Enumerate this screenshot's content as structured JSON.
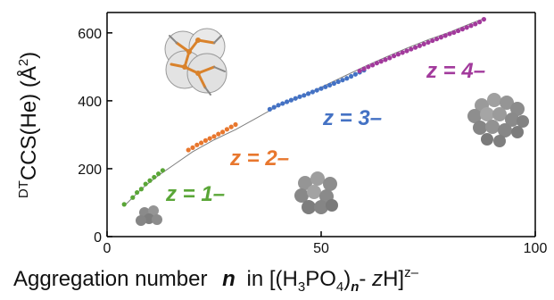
{
  "chart_data": {
    "type": "scatter",
    "title": "",
    "xlabel": {
      "part_main": "Aggregation number",
      "part_n": "n",
      "part_in": "in [(H",
      "sub_3": "3",
      "part_po": "PO",
      "sub_4": "4",
      "part_close": ")",
      "sub_n": "n",
      "part_dash": "- ",
      "part_z": "z",
      "part_h": "H]",
      "sup_charge": "z–"
    },
    "ylabel": {
      "sup": "DT",
      "main": "CCS(He) (Å",
      "sup2": "2",
      "close": ")"
    },
    "xlim": [
      0,
      100
    ],
    "ylim": [
      0,
      660
    ],
    "xticks": [
      0,
      50,
      100
    ],
    "yticks": [
      0,
      200,
      400,
      600
    ],
    "grid": false,
    "fit_line": {
      "color": "#7f7f7f",
      "x": [
        4,
        8,
        12,
        16,
        20,
        25,
        30,
        35,
        40,
        45,
        50,
        55,
        60,
        65,
        70,
        75,
        80,
        85,
        88
      ],
      "y": [
        90,
        140,
        180,
        215,
        250,
        285,
        315,
        350,
        385,
        410,
        440,
        470,
        500,
        528,
        555,
        580,
        602,
        628,
        642
      ]
    },
    "series": [
      {
        "name": "z = 1–",
        "color": "#5aa637",
        "x": [
          4,
          6,
          7,
          8,
          9,
          10,
          11,
          12,
          13
        ],
        "y": [
          95,
          115,
          130,
          140,
          155,
          165,
          175,
          185,
          195
        ]
      },
      {
        "name": "z = 2–",
        "color": "#e8772e",
        "x": [
          19,
          20,
          21,
          22,
          23,
          24,
          25,
          26,
          27,
          28,
          29,
          30
        ],
        "y": [
          255,
          262,
          270,
          276,
          283,
          289,
          295,
          302,
          308,
          316,
          323,
          330
        ]
      },
      {
        "name": "z = 3–",
        "color": "#4472c4",
        "x": [
          38,
          39,
          40,
          41,
          42,
          43,
          44,
          45,
          46,
          47,
          48,
          49,
          50,
          51,
          52,
          53,
          54,
          55,
          56,
          57,
          58,
          59,
          60
        ],
        "y": [
          375,
          381,
          387,
          392,
          397,
          402,
          407,
          412,
          416,
          421,
          426,
          431,
          436,
          441,
          446,
          451,
          456,
          461,
          466,
          472,
          478,
          484,
          490
        ]
      },
      {
        "name": "z = 4–",
        "color": "#a23a9c",
        "x": [
          59,
          60,
          61,
          62,
          63,
          64,
          65,
          66,
          67,
          68,
          69,
          70,
          71,
          72,
          73,
          74,
          75,
          76,
          77,
          78,
          79,
          80,
          81,
          82,
          83,
          84,
          85,
          86,
          87,
          88
        ],
        "y": [
          488,
          494,
          500,
          505,
          511,
          516,
          521,
          526,
          532,
          537,
          542,
          547,
          552,
          557,
          562,
          567,
          572,
          577,
          582,
          587,
          592,
          597,
          601,
          606,
          611,
          616,
          621,
          626,
          632,
          640
        ]
      }
    ],
    "annotations": [
      {
        "label": "z = 1–",
        "color": "#5aa637"
      },
      {
        "label": "z = 2–",
        "color": "#e8772e"
      },
      {
        "label": "z = 3–",
        "color": "#4472c4"
      },
      {
        "label": "z = 4–",
        "color": "#a23a9c"
      }
    ]
  }
}
